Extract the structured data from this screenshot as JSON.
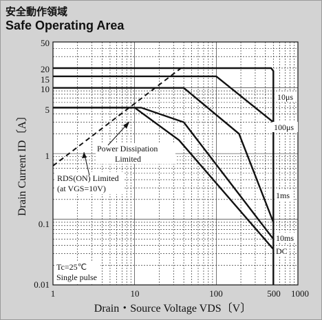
{
  "header": {
    "title_jp": "安全動作領域",
    "title_en": "Safe Operating Area"
  },
  "chart_data": {
    "type": "line",
    "scale": "log-log",
    "xlim": [
      1,
      1000
    ],
    "ylim": [
      0.01,
      50
    ],
    "grid": true,
    "xlabel": "Drain・Source Voltage VDS〔V〕",
    "ylabel": "Drain Current ID〔A〕",
    "x_ticks": [
      "1",
      "10",
      "100",
      "500",
      "1000"
    ],
    "y_ticks": [
      "0.01",
      "0.1",
      "1",
      "5",
      "10",
      "15",
      "20",
      "50"
    ],
    "series": [
      {
        "name": "10μs",
        "points": [
          [
            1,
            20
          ],
          [
            470,
            20
          ],
          [
            500,
            18
          ],
          [
            500,
            0.01
          ]
        ]
      },
      {
        "name": "100μs",
        "points": [
          [
            1,
            15
          ],
          [
            100,
            15
          ],
          [
            500,
            3.0
          ]
        ]
      },
      {
        "name": "1ms",
        "points": [
          [
            1,
            10
          ],
          [
            40,
            10
          ],
          [
            190,
            2.0
          ],
          [
            500,
            0.09
          ]
        ]
      },
      {
        "name": "10ms",
        "points": [
          [
            1,
            5
          ],
          [
            12,
            5
          ],
          [
            40,
            3.0
          ],
          [
            500,
            0.05
          ]
        ]
      },
      {
        "name": "DC",
        "points": [
          [
            1,
            5
          ],
          [
            10,
            5
          ],
          [
            35,
            1.6
          ],
          [
            500,
            0.035
          ]
        ]
      },
      {
        "name": "RDS(ON) Limited",
        "style": "dashed",
        "points": [
          [
            1,
            0.65
          ],
          [
            37,
            20
          ]
        ]
      }
    ],
    "annotations": [
      {
        "text": "10μs",
        "series": "10μs"
      },
      {
        "text": "100μs",
        "series": "100μs"
      },
      {
        "text": "1ms",
        "series": "1ms"
      },
      {
        "text": "10ms",
        "series": "10ms"
      },
      {
        "text": "DC",
        "series": "DC"
      },
      {
        "text": "Power Dissipation"
      },
      {
        "text": "Limited"
      },
      {
        "text": "RDS(ON) Limited"
      },
      {
        "text": "(at VGS=10V)"
      },
      {
        "text": "Tc=25℃"
      },
      {
        "text": "Single pulse"
      }
    ]
  }
}
